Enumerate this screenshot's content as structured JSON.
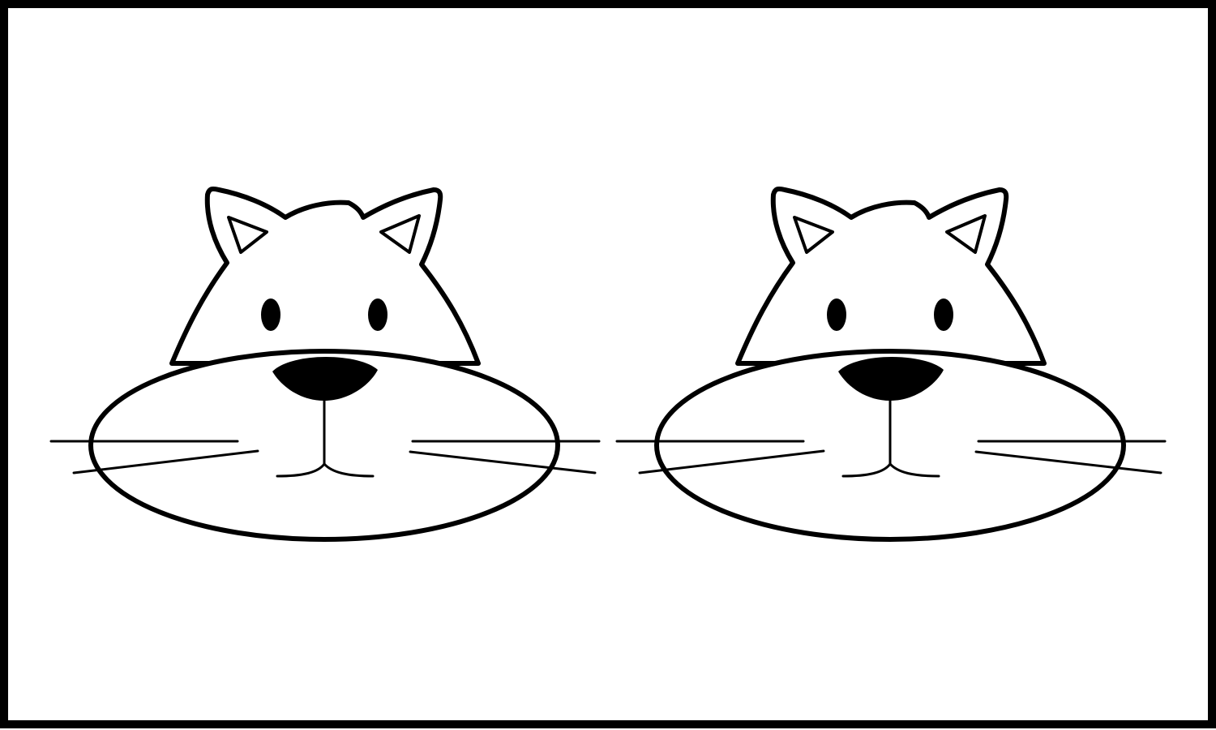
{
  "scene": {
    "background_color": "#ffffff",
    "line_color": "#000000",
    "cat_count": 2,
    "cats": [
      {
        "icon": "cat-face-icon"
      },
      {
        "icon": "cat-face-icon"
      }
    ]
  }
}
